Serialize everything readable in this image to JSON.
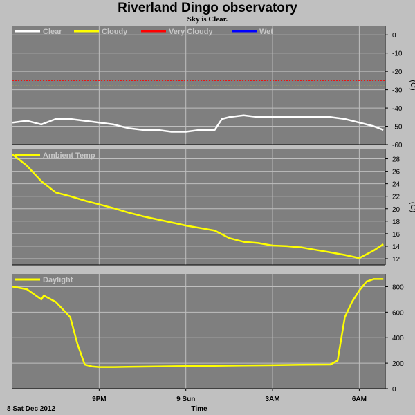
{
  "title": "Riverland Dingo observatory",
  "subtitle": "Sky is Clear.",
  "colors": {
    "plot_bg": "#7f7f7f",
    "grid": "#bfbfbf",
    "clear": "#ffffff",
    "cloudy": "#ffff00",
    "very_cloudy": "#ff0000",
    "wet": "#0000ff",
    "temp": "#ffff00",
    "daylight": "#ffff00"
  },
  "x_axis": {
    "label": "Time",
    "date_label": "8 Sat Dec 2012",
    "range_hours": [
      18.0,
      6.9
    ],
    "ticks": [
      {
        "hour": 21,
        "label": "9PM"
      },
      {
        "hour": 24,
        "label": "9 Sun"
      },
      {
        "hour": 27,
        "label": "3AM"
      },
      {
        "hour": 30,
        "label": "6AM"
      }
    ]
  },
  "chart_data": [
    {
      "type": "line",
      "name": "sky",
      "ylabel": "(C)",
      "ylim": [
        -60,
        5
      ],
      "yticks": [
        0,
        -10,
        -20,
        -30,
        -40,
        -50,
        -60
      ],
      "grid": true,
      "legend": [
        "Clear",
        "Cloudy",
        "Very Cloudy",
        "Wet"
      ],
      "legend_placement": "top-left",
      "thresholds": [
        {
          "series": "Very Cloudy",
          "value": -25
        },
        {
          "series": "Cloudy",
          "value": -28
        }
      ],
      "series": [
        {
          "name": "Clear",
          "x": [
            "18:00",
            "18:30",
            "19:00",
            "19:30",
            "20:00",
            "20:30",
            "21:00",
            "21:30",
            "22:00",
            "22:30",
            "23:00",
            "23:30",
            "00:00",
            "00:30",
            "01:00",
            "01:15",
            "01:30",
            "02:00",
            "02:30",
            "03:00",
            "03:30",
            "04:00",
            "04:30",
            "05:00",
            "05:30",
            "06:00",
            "06:30",
            "06:50"
          ],
          "values": [
            -48,
            -47,
            -49,
            -46,
            -46,
            -47,
            -48,
            -49,
            -51,
            -52,
            -52,
            -53,
            -53,
            -52,
            -52,
            -46,
            -45,
            -44,
            -45,
            -45,
            -45,
            -45,
            -45,
            -45,
            -46,
            -48,
            -50,
            -52
          ]
        }
      ]
    },
    {
      "type": "line",
      "name": "ambient",
      "ylabel": "(C)",
      "ylim": [
        11,
        29.5
      ],
      "yticks": [
        12,
        14,
        16,
        18,
        20,
        22,
        24,
        26,
        28
      ],
      "grid": true,
      "legend": [
        "Ambient Temp"
      ],
      "legend_placement": "top-left",
      "series": [
        {
          "name": "Ambient Temp",
          "x": [
            "18:00",
            "18:30",
            "19:00",
            "19:30",
            "20:00",
            "20:30",
            "21:00",
            "21:30",
            "22:00",
            "22:30",
            "23:00",
            "23:30",
            "00:00",
            "00:30",
            "01:00",
            "01:30",
            "02:00",
            "02:30",
            "03:00",
            "03:30",
            "04:00",
            "04:30",
            "05:00",
            "05:30",
            "06:00",
            "06:30",
            "06:50"
          ],
          "values": [
            28.7,
            26.9,
            24.4,
            22.6,
            22.0,
            21.3,
            20.7,
            20.1,
            19.4,
            18.8,
            18.3,
            17.8,
            17.3,
            16.9,
            16.5,
            15.3,
            14.7,
            14.5,
            14.1,
            14.0,
            13.8,
            13.4,
            13.0,
            12.6,
            12.1,
            13.3,
            14.3
          ]
        }
      ]
    },
    {
      "type": "line",
      "name": "daylight",
      "ylabel": "",
      "ylim": [
        0,
        900
      ],
      "yticks": [
        0,
        200,
        400,
        600,
        800
      ],
      "grid": true,
      "legend": [
        "Daylight"
      ],
      "legend_placement": "top-left",
      "series": [
        {
          "name": "Daylight",
          "x": [
            "18:00",
            "18:30",
            "19:00",
            "19:05",
            "19:30",
            "20:00",
            "20:15",
            "20:30",
            "20:45",
            "21:00",
            "21:30",
            "22:00",
            "23:00",
            "00:00",
            "01:00",
            "02:00",
            "03:00",
            "04:00",
            "05:00",
            "05:15",
            "05:30",
            "05:45",
            "06:00",
            "06:15",
            "06:30",
            "06:50"
          ],
          "values": [
            800,
            780,
            700,
            730,
            680,
            560,
            350,
            190,
            175,
            170,
            170,
            172,
            175,
            178,
            180,
            183,
            185,
            188,
            190,
            220,
            560,
            680,
            770,
            840,
            860,
            860
          ]
        }
      ]
    }
  ]
}
